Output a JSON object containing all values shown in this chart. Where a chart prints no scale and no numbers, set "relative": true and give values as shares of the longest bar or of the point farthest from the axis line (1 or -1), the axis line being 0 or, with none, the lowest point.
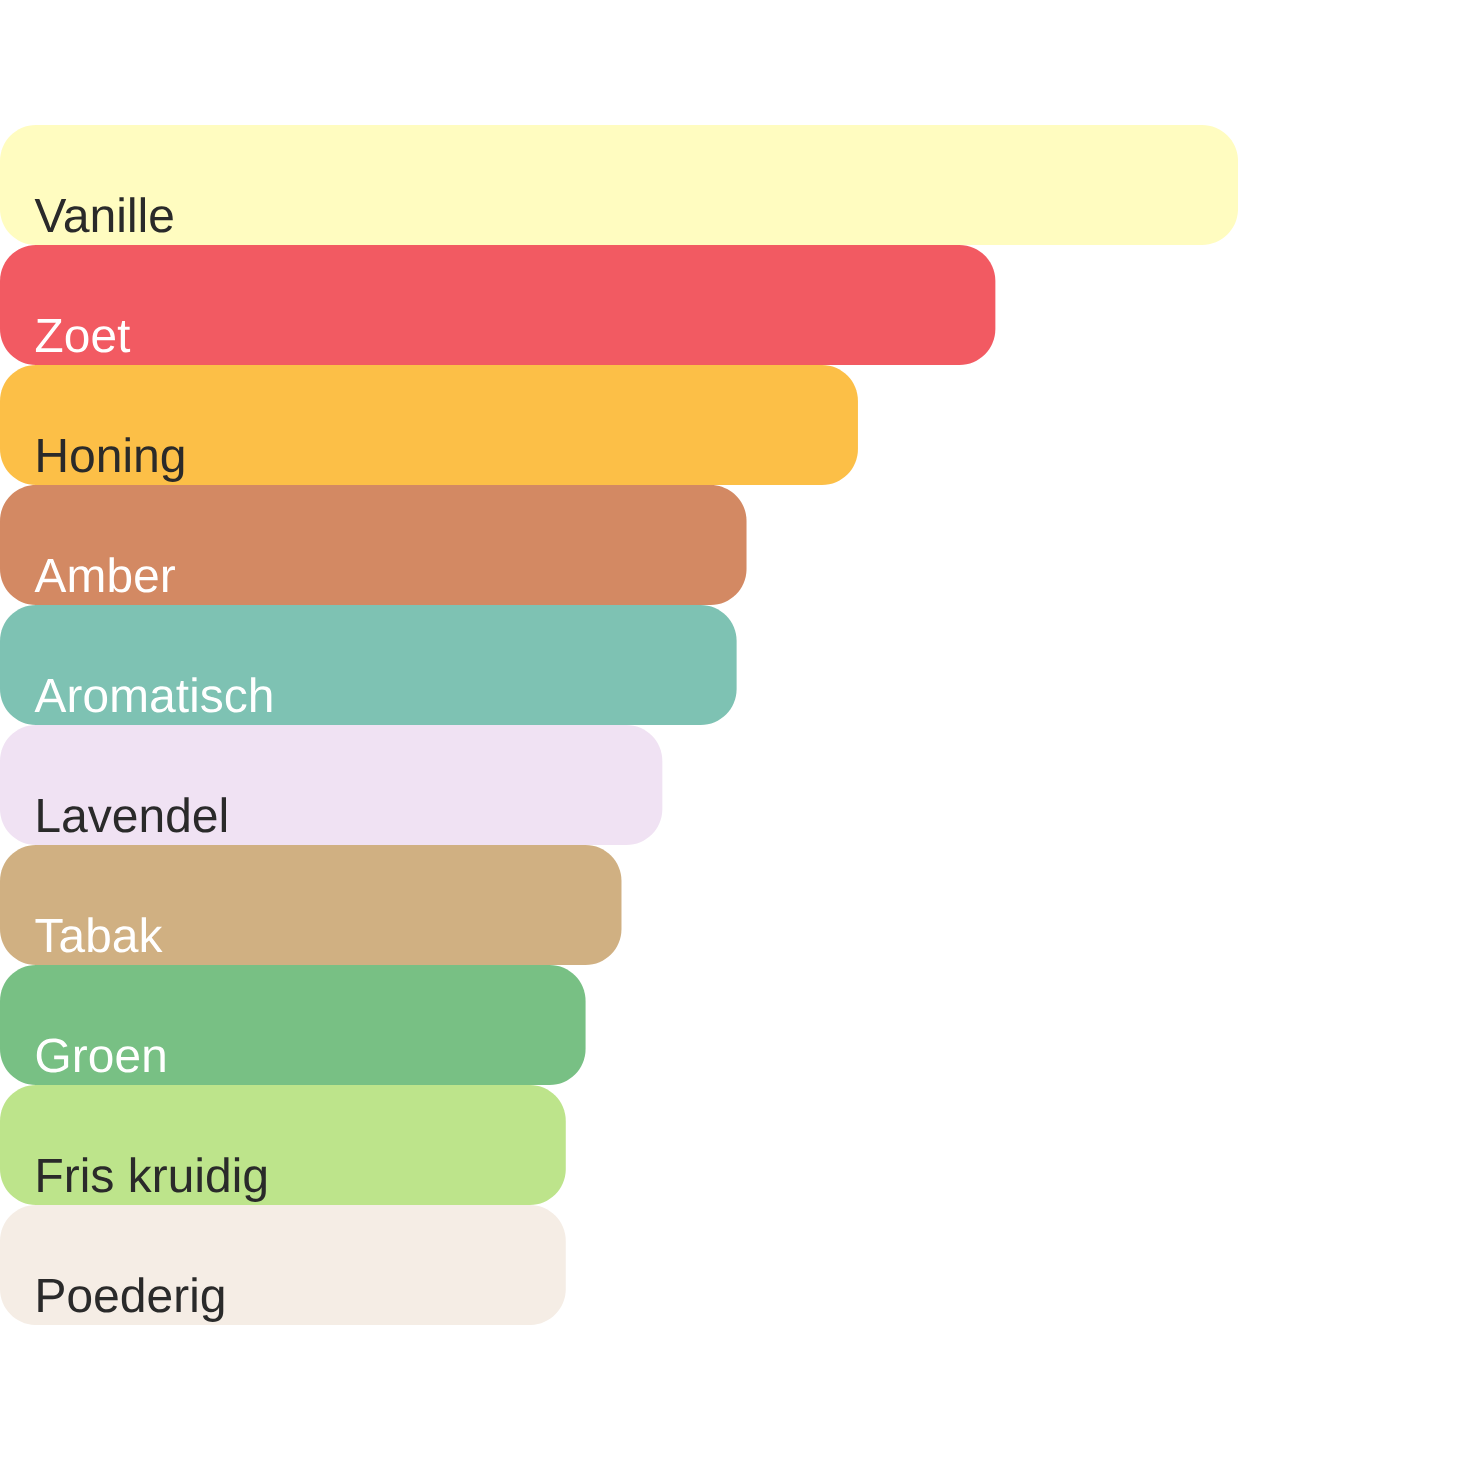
{
  "chart_data": {
    "type": "bar",
    "orientation": "horizontal",
    "relative": true,
    "categories": [
      "Vanille",
      "Zoet",
      "Honing",
      "Amber",
      "Aromatisch",
      "Lavendel",
      "Tabak",
      "Groen",
      "Fris kruidig",
      "Poederig"
    ],
    "values": [
      1,
      0.804,
      0.693,
      0.603,
      0.595,
      0.535,
      0.502,
      0.473,
      0.457,
      0.457
    ],
    "colors": [
      "#fffcc0",
      "#f25a62",
      "#fcbf47",
      "#d38963",
      "#7ec2b3",
      "#f0e2f3",
      "#d0b082",
      "#78c084",
      "#bde48b",
      "#f5ede5"
    ]
  }
}
